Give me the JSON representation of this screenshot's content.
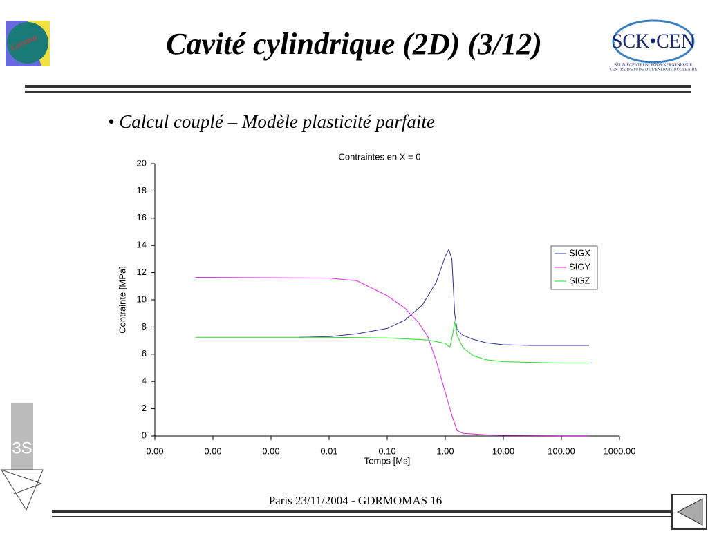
{
  "header": {
    "title": "Cavité cylindrique (2D) (3/12)",
    "logo_left": "Geomac",
    "logo_right": "SCK•CEN",
    "logo_right_line1": "STUDIECENTRUM VOOR KERNENERGIE",
    "logo_right_line2": "CENTRE D'ETUDE DE L'ENERGIE NUCLEAIRE"
  },
  "bullet": "• Calcul couplé – Modèle plasticité parfaite",
  "footer": "Paris 23/11/2004 - GDRMOMAS 16",
  "side_logo": "3S",
  "chart_data": {
    "type": "line",
    "title": "Contraintes en X = 0",
    "x_label": "Temps [Ms]",
    "y_label": "Contrainte [MPa]",
    "xscale": "log",
    "xlim": [
      1e-05,
      1000
    ],
    "xticks": [
      {
        "value": 1e-05,
        "label": "0.00"
      },
      {
        "value": 0.0001,
        "label": "0.00"
      },
      {
        "value": 0.001,
        "label": "0.00"
      },
      {
        "value": 0.01,
        "label": "0.01"
      },
      {
        "value": 0.1,
        "label": "0.10"
      },
      {
        "value": 1,
        "label": "1.00"
      },
      {
        "value": 10,
        "label": "10.00"
      },
      {
        "value": 100,
        "label": "100.00"
      },
      {
        "value": 1000,
        "label": "1000.00"
      }
    ],
    "ylim": [
      0,
      20
    ],
    "yticks": [
      0,
      2,
      4,
      6,
      8,
      10,
      12,
      14,
      16,
      18,
      20
    ],
    "grid": false,
    "legend": "right",
    "series": [
      {
        "name": "SIGX",
        "color": "#2b2f8f",
        "x": [
          0.003,
          0.01,
          0.03,
          0.1,
          0.2,
          0.4,
          0.7,
          1.0,
          1.15,
          1.3,
          1.45,
          1.6,
          2,
          3,
          5,
          10,
          30,
          100,
          300
        ],
        "values": [
          7.25,
          7.3,
          7.5,
          7.9,
          8.5,
          9.6,
          11.3,
          13.2,
          13.7,
          13.0,
          9.0,
          7.8,
          7.4,
          7.1,
          6.85,
          6.7,
          6.65,
          6.65,
          6.65
        ]
      },
      {
        "name": "SIGY",
        "color": "#e020e0",
        "x": [
          5e-05,
          0.01,
          0.03,
          0.1,
          0.2,
          0.35,
          0.5,
          0.7,
          1.0,
          1.3,
          1.6,
          2,
          5,
          10,
          100,
          300
        ],
        "values": [
          11.65,
          11.6,
          11.4,
          10.3,
          9.4,
          8.3,
          7.3,
          5.5,
          3.2,
          1.5,
          0.4,
          0.2,
          0.08,
          0.05,
          0.02,
          0.02
        ]
      },
      {
        "name": "SIGZ",
        "color": "#20e020",
        "x": [
          5e-05,
          0.01,
          0.1,
          0.5,
          1.0,
          1.2,
          1.35,
          1.45,
          1.6,
          2,
          3,
          5,
          10,
          100,
          300
        ],
        "values": [
          7.25,
          7.25,
          7.2,
          7.05,
          6.8,
          6.5,
          7.5,
          8.4,
          7.4,
          6.5,
          5.9,
          5.6,
          5.45,
          5.35,
          5.35
        ]
      }
    ]
  }
}
